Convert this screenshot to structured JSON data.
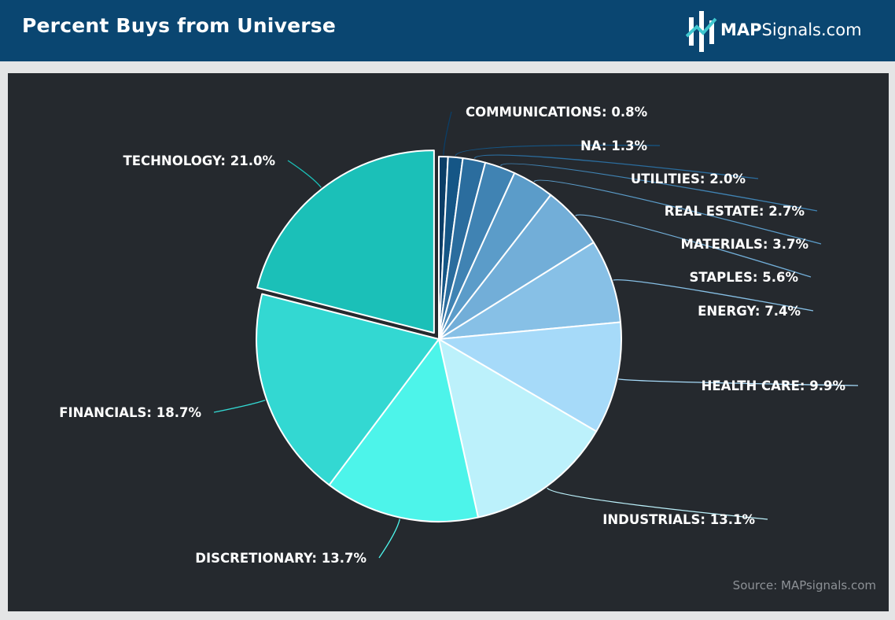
{
  "header": {
    "title": "Percent Buys from Universe",
    "brand_bold": "MAP",
    "brand_rest": "Signals.com",
    "background": "#0a4671"
  },
  "source": "Source: MAPsignals.com",
  "chart_data": {
    "type": "pie",
    "title": "Percent Buys from Universe",
    "start_angle_deg": 0,
    "direction": "clockwise",
    "exploded": "TECHNOLOGY",
    "slices": [
      {
        "label": "COMMUNICATIONS: 0.8%",
        "value": 0.8,
        "color": "#0b3e67"
      },
      {
        "label": "NA: 1.3%",
        "value": 1.3,
        "color": "#155686"
      },
      {
        "label": "UTILITIES: 2.0%",
        "value": 2.0,
        "color": "#2b6d9e"
      },
      {
        "label": "REAL ESTATE: 2.7%",
        "value": 2.7,
        "color": "#4083b3"
      },
      {
        "label": "MATERIALS: 3.7%",
        "value": 3.7,
        "color": "#5b9cc9"
      },
      {
        "label": "STAPLES: 5.6%",
        "value": 5.6,
        "color": "#72aed8"
      },
      {
        "label": "ENERGY: 7.4%",
        "value": 7.4,
        "color": "#87c0e6"
      },
      {
        "label": "HEALTH CARE: 9.9%",
        "value": 9.9,
        "color": "#a6daf9"
      },
      {
        "label": "INDUSTRIALS: 13.1%",
        "value": 13.1,
        "color": "#bcf1fb"
      },
      {
        "label": "DISCRETIONARY: 13.7%",
        "value": 13.7,
        "color": "#4df4ea"
      },
      {
        "label": "FINANCIALS: 18.7%",
        "value": 18.7,
        "color": "#33d8d2"
      },
      {
        "label": "TECHNOLOGY: 21.0%",
        "value": 21.0,
        "color": "#1bc0b8"
      }
    ]
  }
}
